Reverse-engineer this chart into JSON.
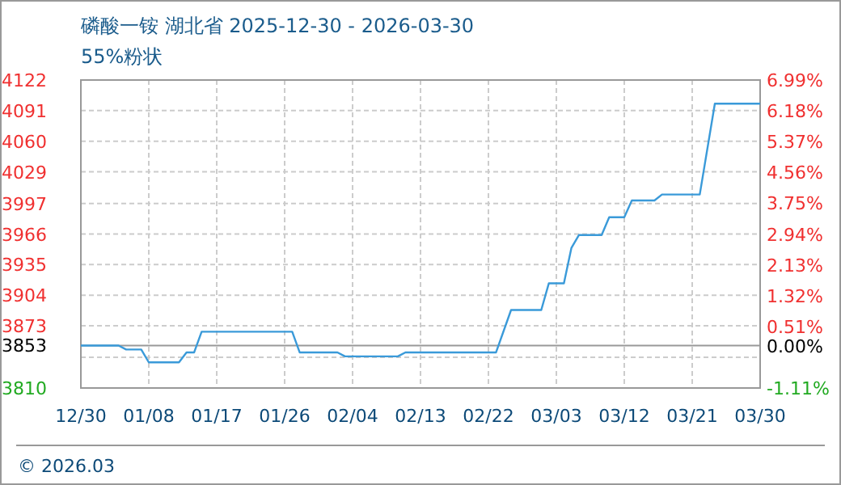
{
  "chart_data": {
    "type": "line",
    "title": "磷酸一铵 湖北省 2025-12-30 - 2026-03-30",
    "subtitle": "55%粉状",
    "x": [
      "2025-12-30",
      "2026-01-04",
      "2026-01-05",
      "2026-01-07",
      "2026-01-08",
      "2026-01-12",
      "2026-01-13",
      "2026-01-14",
      "2026-01-15",
      "2026-01-27",
      "2026-01-28",
      "2026-02-02",
      "2026-02-03",
      "2026-02-10",
      "2026-02-11",
      "2026-02-23",
      "2026-02-25",
      "2026-03-01",
      "2026-03-02",
      "2026-03-04",
      "2026-03-05",
      "2026-03-06",
      "2026-03-09",
      "2026-03-10",
      "2026-03-12",
      "2026-03-13",
      "2026-03-16",
      "2026-03-17",
      "2026-03-22",
      "2026-03-24",
      "2026-03-30"
    ],
    "series": [
      {
        "color": "#3a9ad9",
        "values": [
          3853,
          3853,
          3849,
          3849,
          3836,
          3836,
          3846,
          3846,
          3867,
          3867,
          3846,
          3846,
          3842,
          3842,
          3846,
          3846,
          3889,
          3889,
          3916,
          3916,
          3952,
          3965,
          3965,
          3983,
          3983,
          4000,
          4000,
          4006,
          4006,
          4098,
          4098
        ]
      }
    ],
    "xlim": [
      "2025-12-30",
      "2026-03-30"
    ],
    "xticks": [
      {
        "value": "2025-12-30",
        "label": "12/30"
      },
      {
        "value": "2026-01-08",
        "label": "01/08"
      },
      {
        "value": "2026-01-17",
        "label": "01/17"
      },
      {
        "value": "2026-01-26",
        "label": "01/26"
      },
      {
        "value": "2026-02-04",
        "label": "02/04"
      },
      {
        "value": "2026-02-13",
        "label": "02/13"
      },
      {
        "value": "2026-02-22",
        "label": "02/22"
      },
      {
        "value": "2026-03-03",
        "label": "03/03"
      },
      {
        "value": "2026-03-12",
        "label": "03/12"
      },
      {
        "value": "2026-03-21",
        "label": "03/21"
      },
      {
        "value": "2026-03-30",
        "label": "03/30"
      }
    ],
    "ylim": [
      3810,
      4122
    ],
    "yticks": [
      3810,
      {
        "value": 3841.2,
        "label": null
      },
      3853,
      3873,
      3904,
      3935,
      3966,
      3997,
      4029,
      4060,
      4091,
      4122
    ],
    "y2lim": [
      -1.11,
      6.99
    ],
    "y2ticks": [
      {
        "value": -1.11,
        "label": "-1.11%"
      },
      {
        "value": -0.3,
        "label": null
      },
      {
        "value": 0,
        "label": "0.00%"
      },
      {
        "value": 0.51,
        "label": "0.51%"
      },
      {
        "value": 1.32,
        "label": "1.32%"
      },
      {
        "value": 2.13,
        "label": "2.13%"
      },
      {
        "value": 2.94,
        "label": "2.94%"
      },
      {
        "value": 3.75,
        "label": "3.75%"
      },
      {
        "value": 4.56,
        "label": "4.56%"
      },
      {
        "value": 5.37,
        "label": "5.37%"
      },
      {
        "value": 6.18,
        "label": "6.18%"
      },
      {
        "value": 6.99,
        "label": "6.99%"
      }
    ],
    "ref_lines": [
      {
        "axis": "y",
        "value": 3853,
        "color": "#999999"
      }
    ],
    "grid": true,
    "annotations": [
      "© 2026.03"
    ]
  }
}
